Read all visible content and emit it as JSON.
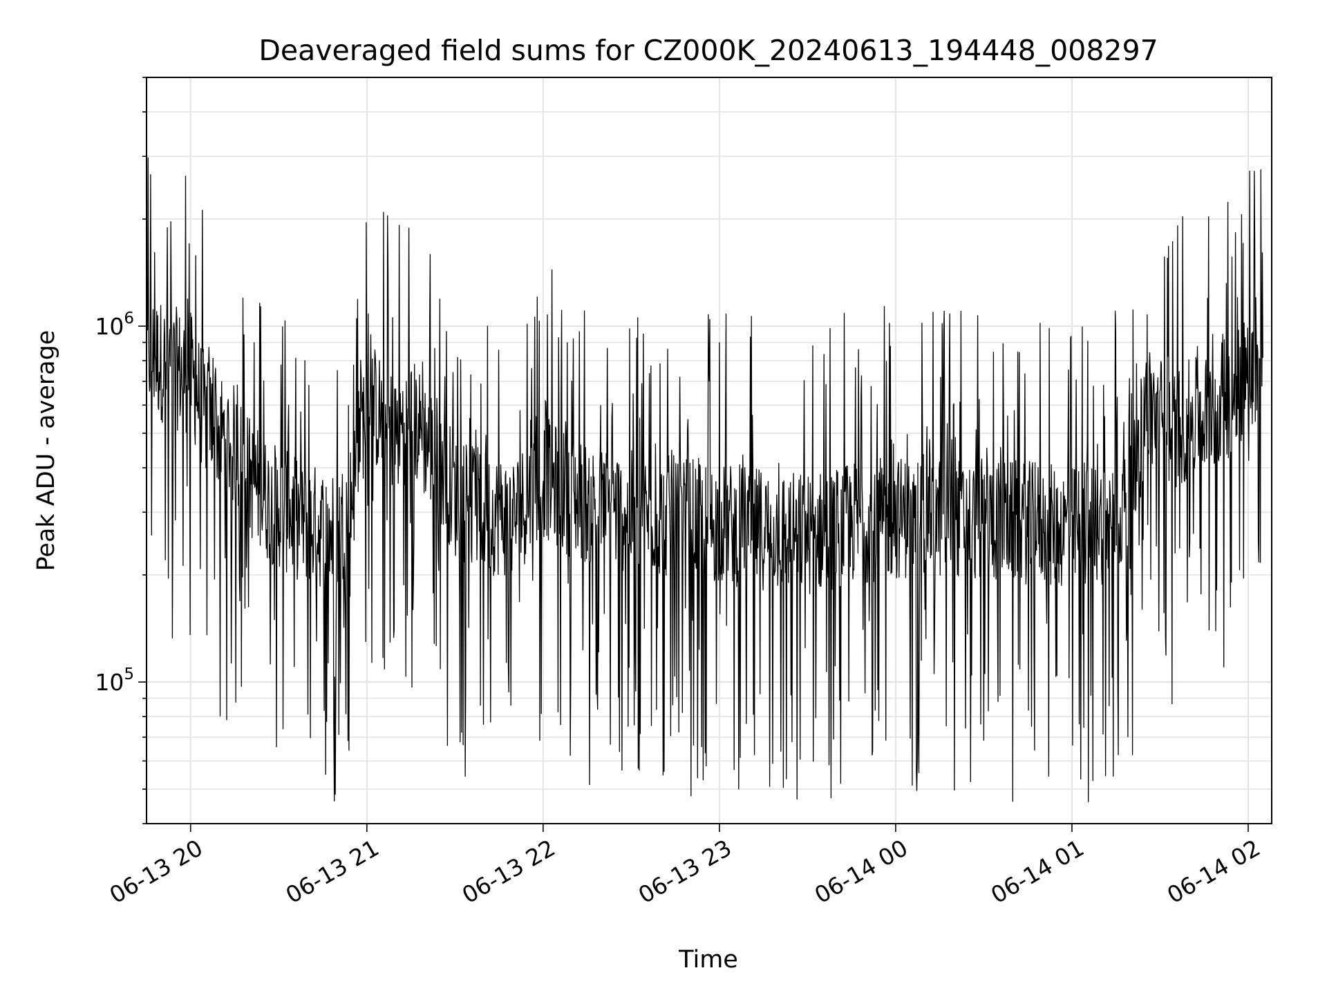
{
  "chart_data": {
    "type": "line",
    "title": "Deaveraged field sums for CZ000K_20240613_194448_008297",
    "xlabel": "Time",
    "ylabel": "Peak ADU - average",
    "y_scale": "log",
    "xlim": [
      "2024-06-13 19:45",
      "2024-06-14 02:08"
    ],
    "ylim": [
      40000,
      5000000
    ],
    "x_ticks": [
      "06-13 20",
      "06-13 21",
      "06-13 22",
      "06-13 23",
      "06-14 00",
      "06-14 01",
      "06-14 02"
    ],
    "y_ticks": [
      {
        "base": "10",
        "exp": "5"
      },
      {
        "base": "10",
        "exp": "6"
      }
    ],
    "grid": true,
    "line_color": "#000000",
    "series": [
      {
        "x": [
          "2024-06-13 19:45",
          "2024-06-13 19:50",
          "2024-06-13 19:55",
          "2024-06-13 20:00",
          "2024-06-13 20:05",
          "2024-06-13 20:10",
          "2024-06-13 20:15",
          "2024-06-13 20:20",
          "2024-06-13 20:25",
          "2024-06-13 20:30",
          "2024-06-13 20:35",
          "2024-06-13 20:40",
          "2024-06-13 20:45",
          "2024-06-13 20:50",
          "2024-06-13 20:55",
          "2024-06-13 21:00",
          "2024-06-13 21:05",
          "2024-06-13 21:10",
          "2024-06-13 21:15",
          "2024-06-13 21:20",
          "2024-06-13 21:25",
          "2024-06-13 21:30",
          "2024-06-13 21:40",
          "2024-06-13 21:50",
          "2024-06-13 21:55",
          "2024-06-13 22:00",
          "2024-06-13 22:10",
          "2024-06-13 22:20",
          "2024-06-13 22:30",
          "2024-06-13 22:45",
          "2024-06-13 23:00",
          "2024-06-13 23:15",
          "2024-06-13 23:30",
          "2024-06-13 23:45",
          "2024-06-14 00:00",
          "2024-06-14 00:15",
          "2024-06-14 00:30",
          "2024-06-14 00:45",
          "2024-06-14 01:00",
          "2024-06-14 01:10",
          "2024-06-14 01:20",
          "2024-06-14 01:25",
          "2024-06-14 01:35",
          "2024-06-14 01:45",
          "2024-06-14 01:55",
          "2024-06-14 02:05"
        ],
        "y": [
          850000,
          800000,
          760000,
          740000,
          560000,
          500000,
          460000,
          380000,
          330000,
          310000,
          290000,
          280000,
          270000,
          260000,
          330000,
          650000,
          550000,
          500000,
          560000,
          480000,
          420000,
          330000,
          300000,
          290000,
          330000,
          380000,
          330000,
          310000,
          300000,
          290000,
          280000,
          270000,
          260000,
          280000,
          290000,
          290000,
          285000,
          280000,
          270000,
          280000,
          310000,
          600000,
          520000,
          560000,
          650000,
          850000
        ]
      }
    ]
  }
}
